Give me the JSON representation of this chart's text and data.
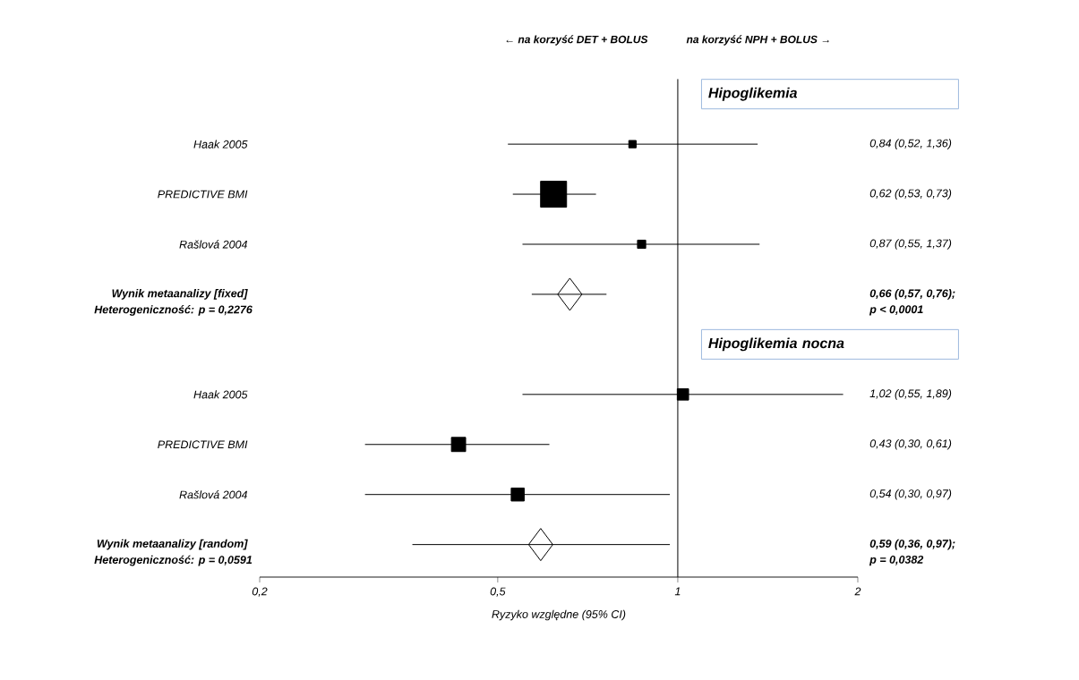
{
  "chart_data": {
    "type": "scatter",
    "orientation": "horizontal",
    "log": "x",
    "categories": [
      null,
      "Haak 2005",
      "PREDICTIVE BMI",
      "Rašlová 2004",
      "Wynik metaanalizy [fixed]",
      null,
      "Haak 2005",
      "PREDICTIVE BMI",
      "Rašlová 2004",
      "Wynik metaanalizy [random]"
    ],
    "series": [
      {
        "type": "bubble",
        "marker": "square",
        "color": "#000000",
        "values": [
          null,
          0.84,
          0.62,
          0.87,
          null,
          null,
          1.02,
          0.43,
          0.54,
          null
        ],
        "errors": [
          null,
          [
            0.52,
            1.36
          ],
          [
            0.53,
            0.73
          ],
          [
            0.55,
            1.37
          ],
          null,
          null,
          [
            0.55,
            1.89
          ],
          [
            0.3,
            0.61
          ],
          [
            0.3,
            0.97
          ],
          null
        ],
        "sizes": [
          null,
          0.08,
          1,
          0.1,
          null,
          null,
          0.19,
          0.3,
          0.25,
          null
        ],
        "value_labels": [
          null,
          "0,84 (0,52, 1,36)",
          "0,62 (0,53, 0,73)",
          "0,87 (0,55, 1,37)",
          null,
          null,
          "1,02 (0,55, 1,89)",
          "0,43 (0,30, 0,61)",
          "0,54 (0,30, 0,97)",
          null
        ]
      },
      {
        "type": "scatter",
        "marker": "diamond",
        "color": "#000000",
        "values": [
          null,
          null,
          null,
          null,
          0.66,
          null,
          null,
          null,
          null,
          0.59
        ],
        "errors": [
          null,
          null,
          null,
          null,
          [
            0.57,
            0.76
          ],
          null,
          null,
          null,
          null,
          [
            0.36,
            0.97
          ]
        ]
      }
    ],
    "xlim": [
      0.2,
      2
    ],
    "xticks": [
      {
        "value": 0.2,
        "label": "0,2"
      },
      {
        "value": 0.5,
        "label": "0,5"
      },
      {
        "value": 1,
        "label": "1"
      },
      {
        "value": 2,
        "label": "2"
      }
    ],
    "xlabel": "Ryzyko względne (95% CI)",
    "ref_lines": [
      {
        "axis": "x",
        "value": 1
      }
    ],
    "annotations": [
      "← na korzyść DET + BOLUS",
      "na korzyść NPH + BOLUS →",
      "Hipoglikemia",
      "Hipoglikemia nocna",
      "Heterogeniczność: p = 0,2276",
      "Heterogeniczność: p = 0,0591",
      "0,66 (0,57, 0,76);",
      "0,59 (0,36, 0,97);",
      "p < 0,0001",
      "p = 0,0382"
    ]
  }
}
